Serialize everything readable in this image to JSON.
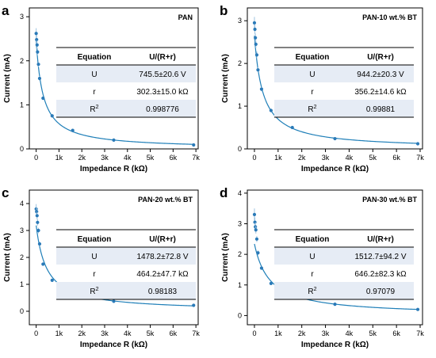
{
  "chart_data": [
    {
      "type": "scatter",
      "panel_letter": "a",
      "title": "PAN",
      "xlabel": "Impedance R (kΩ)",
      "ylabel": "Current (mA)",
      "xlim": [
        -300,
        7100
      ],
      "ylim": [
        0,
        3.2
      ],
      "xticks": [
        0,
        1000,
        2000,
        3000,
        4000,
        5000,
        6000,
        7000
      ],
      "xtick_labels": [
        "0",
        "1k",
        "2k",
        "3k",
        "4k",
        "5k",
        "6k",
        "7k"
      ],
      "yticks": [
        0,
        1,
        2,
        3
      ],
      "ytick_labels": [
        "0",
        "1",
        "2",
        "3"
      ],
      "fit": {
        "U": 745.5,
        "r": 302.3
      },
      "series": [
        {
          "x": [
            0,
            20,
            40,
            60,
            100,
            150,
            300,
            700,
            1600,
            3400,
            6900
          ],
          "y": [
            2.62,
            2.48,
            2.36,
            2.2,
            1.92,
            1.6,
            1.15,
            0.75,
            0.42,
            0.2,
            0.09
          ],
          "err": [
            0.12,
            0.1,
            0.1,
            0.08,
            0.06,
            0.05,
            0.04,
            0.03,
            0.02,
            0.01,
            0.01
          ]
        }
      ],
      "table": {
        "headers": [
          "Equation",
          "U/(R+r)"
        ],
        "rows": [
          [
            "U",
            "745.5±20.6 V"
          ],
          [
            "r",
            "302.3±15.0 kΩ"
          ],
          [
            "R2",
            "0.998776"
          ]
        ]
      }
    },
    {
      "type": "scatter",
      "panel_letter": "b",
      "title": "PAN-10 wt.% BT",
      "xlabel": "Impedance R (kΩ)",
      "ylabel": "Current (mA)",
      "xlim": [
        -300,
        7100
      ],
      "ylim": [
        0,
        3.3
      ],
      "xticks": [
        0,
        1000,
        2000,
        3000,
        4000,
        5000,
        6000,
        7000
      ],
      "xtick_labels": [
        "0",
        "1k",
        "2k",
        "3k",
        "4k",
        "5k",
        "6k",
        "7k"
      ],
      "yticks": [
        0,
        1,
        2,
        3
      ],
      "ytick_labels": [
        "0",
        "1",
        "2",
        "3"
      ],
      "fit": {
        "U": 944.2,
        "r": 356.2
      },
      "series": [
        {
          "x": [
            0,
            20,
            40,
            60,
            100,
            150,
            300,
            700,
            1600,
            3400,
            6900
          ],
          "y": [
            2.95,
            2.8,
            2.6,
            2.45,
            2.2,
            1.85,
            1.4,
            0.9,
            0.5,
            0.24,
            0.12
          ],
          "err": [
            0.14,
            0.12,
            0.1,
            0.09,
            0.08,
            0.06,
            0.05,
            0.04,
            0.02,
            0.01,
            0.01
          ]
        }
      ],
      "table": {
        "headers": [
          "Equation",
          "U/(R+r)"
        ],
        "rows": [
          [
            "U",
            "944.2±20.3 V"
          ],
          [
            "r",
            "356.2±14.6 kΩ"
          ],
          [
            "R2",
            "0.99881"
          ]
        ]
      }
    },
    {
      "type": "scatter",
      "panel_letter": "c",
      "title": "PAN-20 wt.% BT",
      "xlabel": "Impedance R (kΩ)",
      "ylabel": "Current (mA)",
      "xlim": [
        -300,
        7100
      ],
      "ylim": [
        -0.5,
        4.5
      ],
      "xticks": [
        0,
        1000,
        2000,
        3000,
        4000,
        5000,
        6000,
        7000
      ],
      "xtick_labels": [
        "0",
        "1k",
        "2k",
        "3k",
        "4k",
        "5k",
        "6k",
        "7k"
      ],
      "yticks": [
        0,
        1,
        2,
        3,
        4
      ],
      "ytick_labels": [
        "0",
        "1",
        "2",
        "3",
        "4"
      ],
      "fit": {
        "U": 1478.2,
        "r": 464.2
      },
      "series": [
        {
          "x": [
            0,
            20,
            40,
            60,
            100,
            150,
            300,
            700,
            1600,
            3400,
            6900
          ],
          "y": [
            3.8,
            3.7,
            3.55,
            3.3,
            3.0,
            2.5,
            1.75,
            1.15,
            0.68,
            0.37,
            0.22
          ],
          "err": [
            0.18,
            0.15,
            0.14,
            0.12,
            0.1,
            0.08,
            0.06,
            0.04,
            0.03,
            0.02,
            0.02
          ]
        }
      ],
      "table": {
        "headers": [
          "Equation",
          "U/(R+r)"
        ],
        "rows": [
          [
            "U",
            "1478.2±72.8 V"
          ],
          [
            "r",
            "464.2±47.7 kΩ"
          ],
          [
            "R2",
            "0.98183"
          ]
        ]
      }
    },
    {
      "type": "scatter",
      "panel_letter": "d",
      "title": "PAN-30 wt.% BT",
      "xlabel": "Impedance R (kΩ)",
      "ylabel": "Current (mA)",
      "xlim": [
        -300,
        7100
      ],
      "ylim": [
        -0.3,
        4.1
      ],
      "xticks": [
        0,
        1000,
        2000,
        3000,
        4000,
        5000,
        6000,
        7000
      ],
      "xtick_labels": [
        "0",
        "1k",
        "2k",
        "3k",
        "4k",
        "5k",
        "6k",
        "7k"
      ],
      "yticks": [
        0,
        1,
        2,
        3,
        4
      ],
      "ytick_labels": [
        "0",
        "1",
        "2",
        "3",
        "4"
      ],
      "fit": {
        "U": 1512.7,
        "r": 646.2
      },
      "series": [
        {
          "x": [
            0,
            20,
            40,
            60,
            100,
            150,
            300,
            700,
            1600,
            3400,
            6900
          ],
          "y": [
            3.3,
            3.05,
            2.9,
            2.8,
            2.5,
            2.05,
            1.55,
            1.05,
            0.58,
            0.37,
            0.2
          ],
          "err": [
            0.2,
            0.16,
            0.14,
            0.12,
            0.1,
            0.08,
            0.06,
            0.04,
            0.03,
            0.02,
            0.02
          ]
        }
      ],
      "table": {
        "headers": [
          "Equation",
          "U/(R+r)"
        ],
        "rows": [
          [
            "U",
            "1512.7±94.2 V"
          ],
          [
            "r",
            "646.2±82.3 kΩ"
          ],
          [
            "R2",
            "0.97079"
          ]
        ]
      }
    }
  ],
  "colors": {
    "marker": "#2a7ab8",
    "fit_line": "#1f7fb8",
    "error_bar": "#9dc3e0",
    "table_shade": "#e6ecf5",
    "axis": "#000000"
  }
}
